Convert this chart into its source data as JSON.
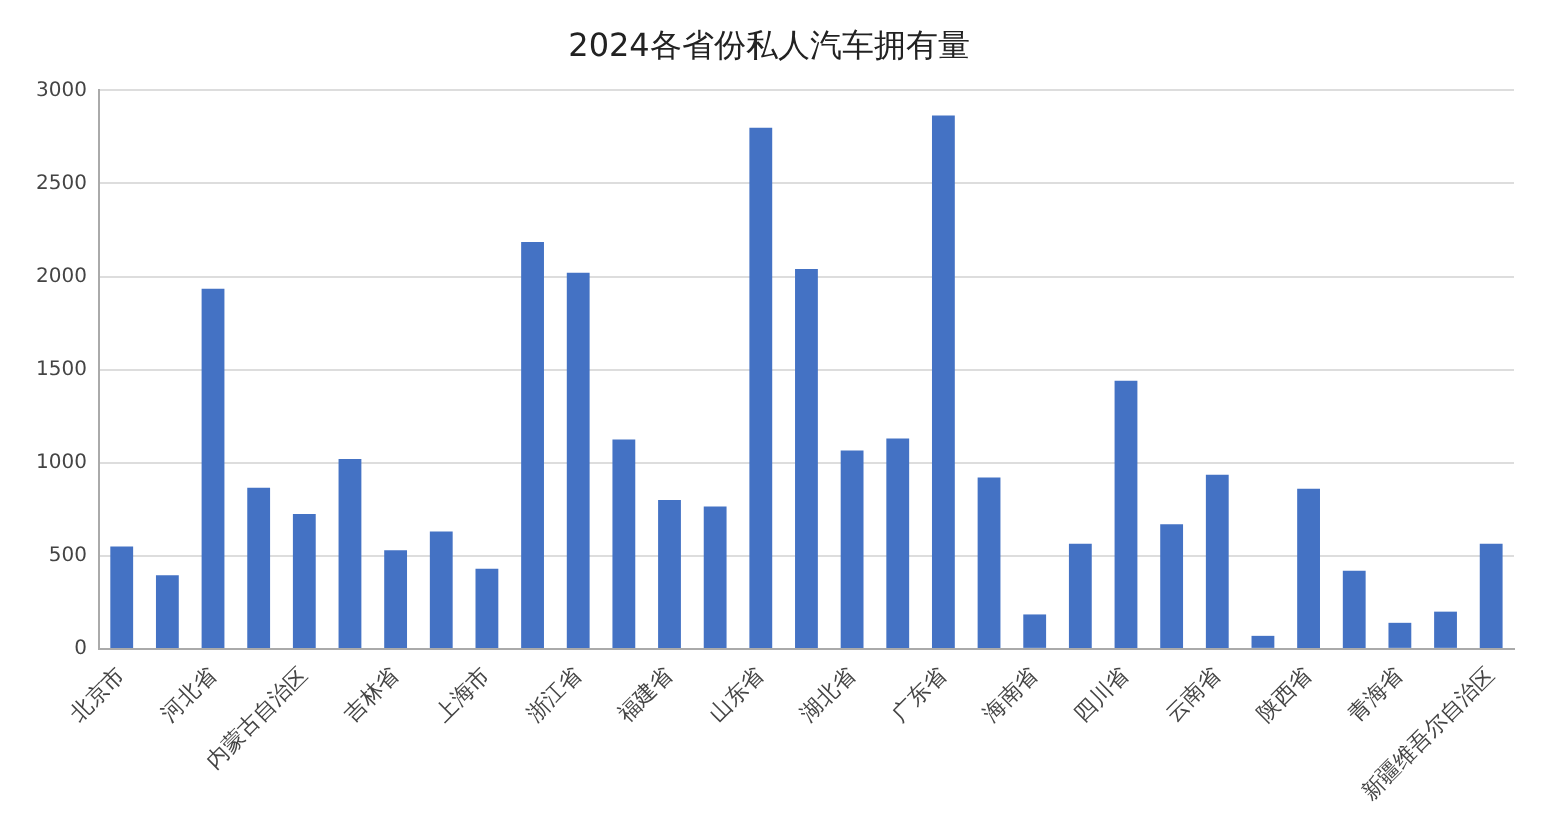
{
  "chart_data": {
    "type": "bar",
    "title": "2024各省份私人汽车拥有量",
    "categories": [
      "北京市",
      null,
      "河北省",
      null,
      "内蒙古自治区",
      null,
      "吉林省",
      null,
      "上海市",
      null,
      "浙江省",
      null,
      "福建省",
      null,
      "山东省",
      null,
      "湖北省",
      null,
      "广东省",
      null,
      "海南省",
      null,
      "四川省",
      null,
      "云南省",
      null,
      "陕西省",
      null,
      "青海省",
      null,
      "新疆维吾尔自治区"
    ],
    "values": [
      550,
      395,
      1935,
      865,
      725,
      1020,
      530,
      630,
      430,
      2185,
      2020,
      1125,
      800,
      765,
      2800,
      2040,
      1065,
      1130,
      2865,
      920,
      185,
      565,
      1440,
      670,
      935,
      70,
      860,
      420,
      140,
      200,
      565
    ],
    "color": "#4472c4",
    "ylim": [
      0,
      3000
    ],
    "yticks": [
      0,
      500,
      1000,
      1500,
      2000,
      2500,
      3000
    ],
    "grid": "y"
  }
}
